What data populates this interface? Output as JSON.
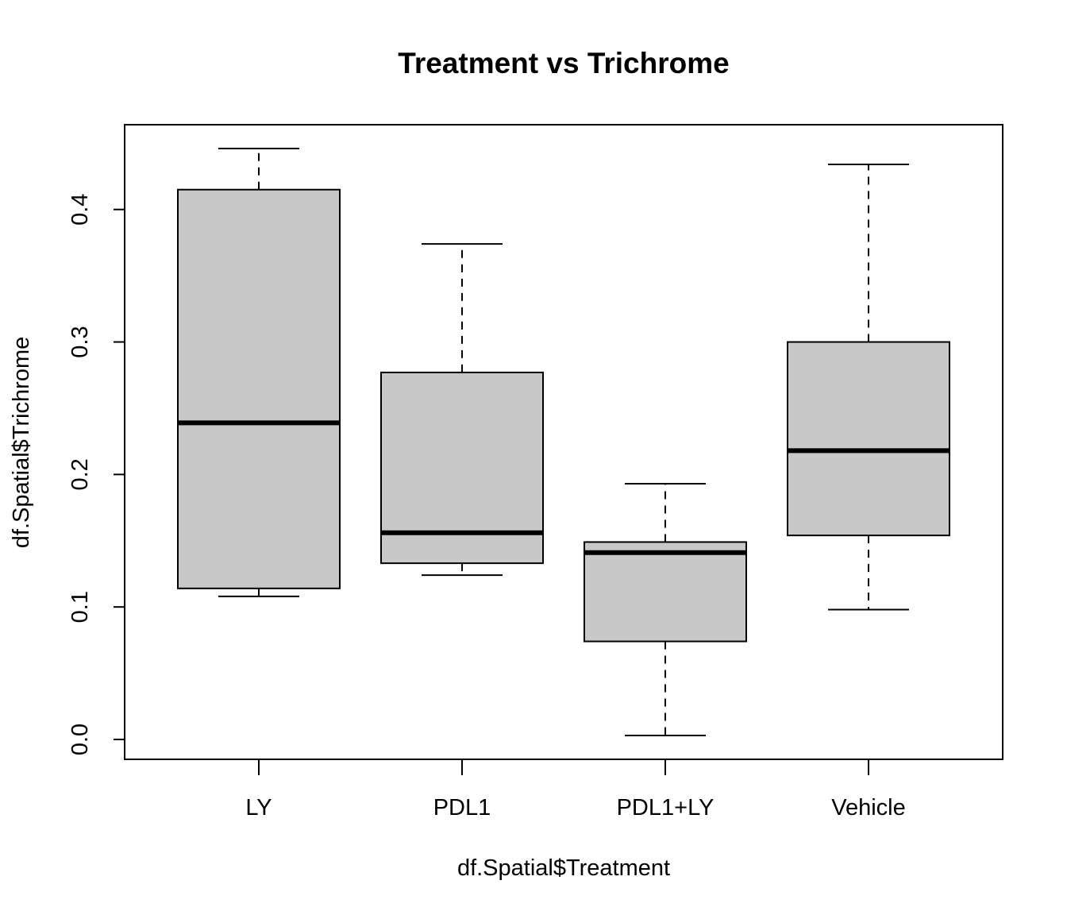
{
  "chart_data": {
    "type": "boxplot",
    "title": "Treatment vs Trichrome",
    "xlabel": "df.Spatial$Treatment",
    "ylabel": "df.Spatial$Trichrome",
    "ylim": [
      -0.015,
      0.464
    ],
    "yticks": [
      0.0,
      0.1,
      0.2,
      0.3,
      0.4
    ],
    "ytick_labels": [
      "0.0",
      "0.1",
      "0.2",
      "0.3",
      "0.4"
    ],
    "categories": [
      "LY",
      "PDL1",
      "PDL1+LY",
      "Vehicle"
    ],
    "boxes": [
      {
        "category": "LY",
        "min": 0.108,
        "q1": 0.114,
        "median": 0.239,
        "q3": 0.415,
        "max": 0.446
      },
      {
        "category": "PDL1",
        "min": 0.124,
        "q1": 0.133,
        "median": 0.156,
        "q3": 0.277,
        "max": 0.374
      },
      {
        "category": "PDL1+LY",
        "min": 0.003,
        "q1": 0.074,
        "median": 0.141,
        "q3": 0.149,
        "max": 0.193
      },
      {
        "category": "Vehicle",
        "min": 0.098,
        "q1": 0.154,
        "median": 0.218,
        "q3": 0.3,
        "max": 0.434
      }
    ],
    "box_color": "#c8c8c8",
    "grid": false,
    "legend": "none"
  }
}
